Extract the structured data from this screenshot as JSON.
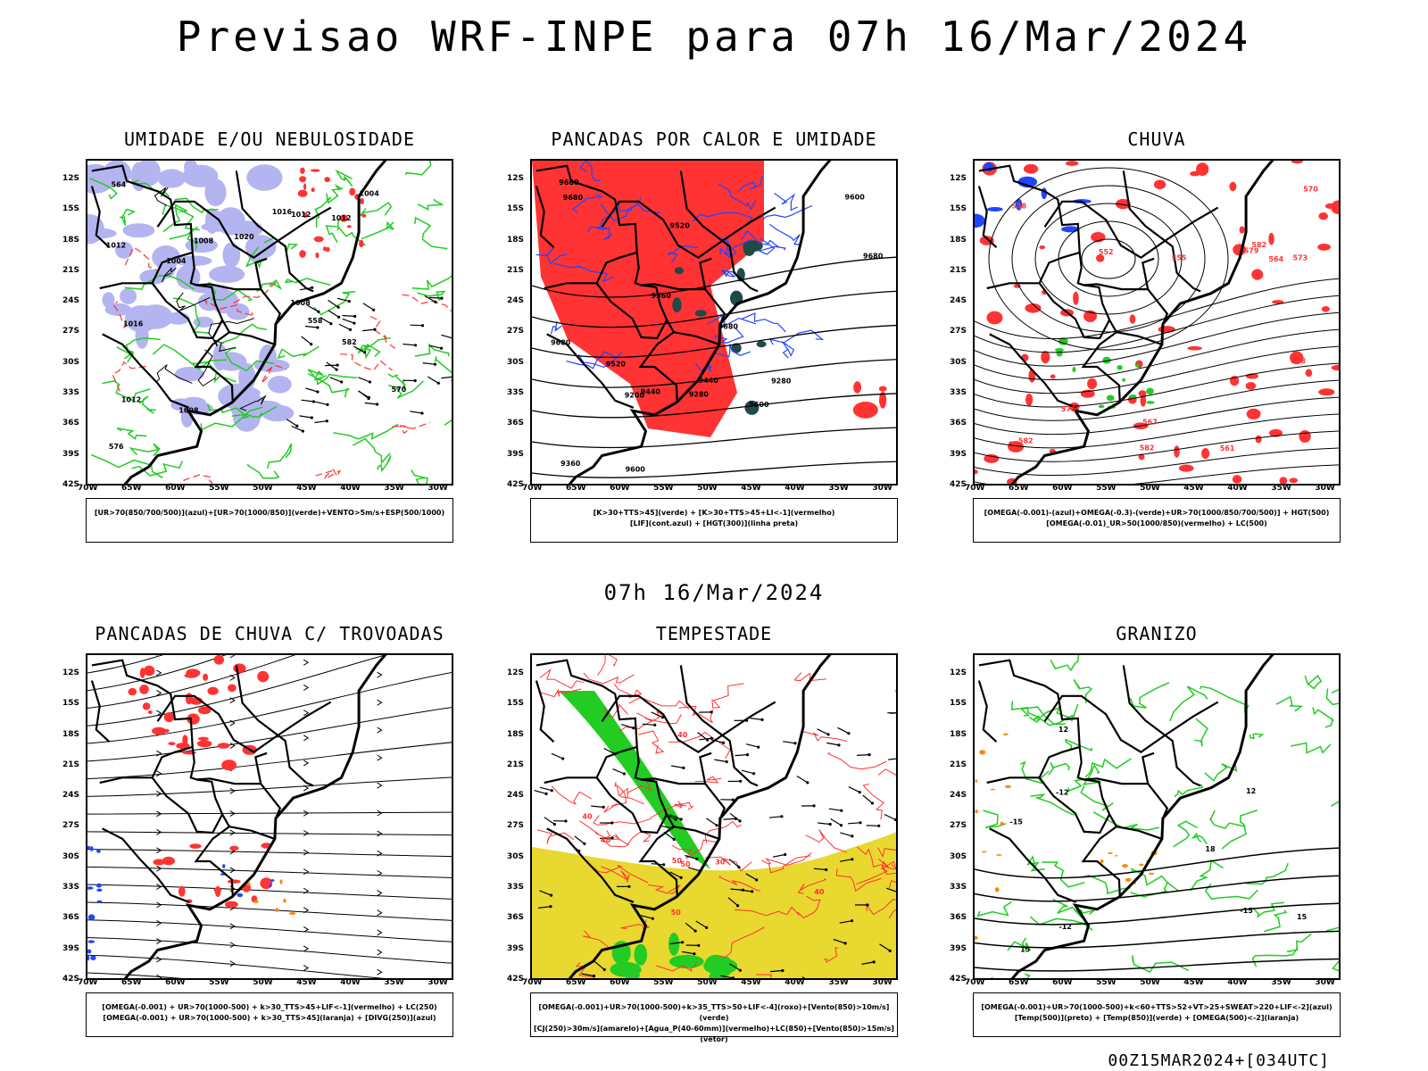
{
  "main_title": "Previsao WRF-INPE  para 07h 16/Mar/2024",
  "middle_title": "07h 16/Mar/2024",
  "footer": "00Z15MAR2024+[034UTC]",
  "axes": {
    "lat_labels": [
      "12S",
      "15S",
      "18S",
      "21S",
      "24S",
      "27S",
      "30S",
      "33S",
      "36S",
      "39S",
      "42S"
    ],
    "lon_labels": [
      "70W",
      "65W",
      "60W",
      "55W",
      "50W",
      "45W",
      "40W",
      "35W",
      "30W"
    ]
  },
  "colors": {
    "green": "#22cc22",
    "red": "#ff3333",
    "blue": "#2244ff",
    "lavender": "#b4b4f0",
    "darkteal": "#1f4a48",
    "yellow": "#e8d830",
    "orange": "#ff8800",
    "purple": "#aa22cc"
  },
  "panels": [
    {
      "title": "UMIDADE E/OU NEBULOSIDADE",
      "legend": [
        "[UR>70(850/700/500)](azul)+[UR>70(1000/850)](verde)+VENTO>5m/s+ESP(500/1000)"
      ],
      "contour_labels": [
        "1012",
        "1008",
        "1016",
        "1020",
        "1004",
        "1012",
        "1004",
        "1008",
        "1012",
        "1016",
        "582",
        "576",
        "570",
        "564",
        "558",
        "1008",
        "1012"
      ]
    },
    {
      "title": "PANCADAS POR CALOR E UMIDADE",
      "legend": [
        "[K>30+TTS>45](verde) + [K>30+TTS>45+LI<-1](vermelho)",
        "[LIF](cont.azul) + [HGT(300)](linha preta)"
      ],
      "contour_labels": [
        "9680",
        "9680",
        "9680",
        "9600",
        "9680",
        "9600",
        "9520",
        "9440",
        "9360",
        "9280",
        "9200",
        "9680",
        "9600",
        "9520",
        "9440",
        "9360",
        "9280"
      ]
    },
    {
      "title": "CHUVA",
      "legend": [
        "[OMEGA(-0.001)-(azul)+OMEGA(-0.3)-(verde)+UR>70(1000/850/700/500)] + HGT(500)",
        "[OMEGA(-0.01)_UR>50(1000/850)(vermelho) + LC(500)"
      ],
      "contour_labels": [
        "582",
        "582",
        "588",
        "582",
        "579",
        "576",
        "573",
        "570",
        "567",
        "564",
        "561",
        "558",
        "555",
        "552"
      ]
    },
    {
      "title": "PANCADAS DE CHUVA C/ TROVOADAS",
      "legend": [
        "[OMEGA(-0.001) + UR>70(1000-500) + k>30_TTS>45+LIF<-1](vermelho) + LC(250)",
        "[OMEGA(-0.001) + UR>70(1000-500) + k>30_TTS>45](laranja) + [DIVG(250)](azul)"
      ],
      "contour_labels": []
    },
    {
      "title": "TEMPESTADE",
      "legend": [
        "[OMEGA(-0.001)+UR>70(1000-500)+k>35_TTS>50+LIF<-4](roxo)+[Vento(850)>10m/s](verde)",
        "[CJ(250)>30m/s](amarelo)+[Agua_P(40-60mm)](vermelho)+LC(850)+[Vento(850)>15m/s](vetor)"
      ],
      "contour_labels": [
        "40",
        "50",
        "40",
        "30",
        "40",
        "50",
        "40",
        "50"
      ]
    },
    {
      "title": "GRANIZO",
      "legend": [
        "[OMEGA(-0.001)+UR>70(1000-500)+k<60+TTS>52+VT>25+SWEAT>220+LIF<-2](azul)",
        "[Temp(500)](preto) + [Temp(850)](verde) + [OMEGA(500)<-2](laranja)"
      ],
      "contour_labels": [
        "-12",
        "-12",
        "-15",
        "-15",
        "12",
        "15",
        "18",
        "15",
        "12"
      ]
    }
  ]
}
